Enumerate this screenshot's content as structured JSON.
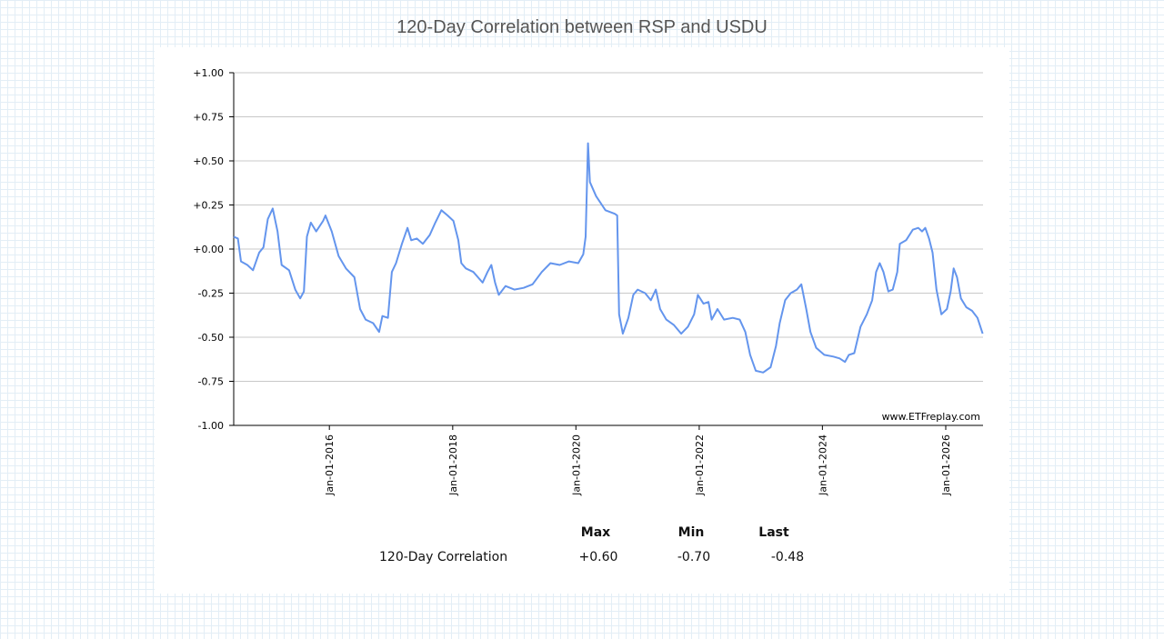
{
  "chart_data": {
    "type": "line",
    "title": "120-Day Correlation between RSP and USDU",
    "watermark": "www.ETFreplay.com",
    "xlim": [
      "2014-06-13",
      "2026-08-10"
    ],
    "xticks": [
      {
        "value": "2016-01-01",
        "label": "Jan-01-2016"
      },
      {
        "value": "2018-01-01",
        "label": "Jan-01-2018"
      },
      {
        "value": "2020-01-01",
        "label": "Jan-01-2020"
      },
      {
        "value": "2022-01-01",
        "label": "Jan-01-2022"
      },
      {
        "value": "2024-01-01",
        "label": "Jan-01-2024"
      },
      {
        "value": "2026-01-01",
        "label": "Jan-01-2026"
      }
    ],
    "ylim": [
      -1,
      1
    ],
    "yticks": [
      {
        "value": -1,
        "label": "-1.00"
      },
      {
        "value": -0.75,
        "label": "-0.75"
      },
      {
        "value": -0.5,
        "label": "-0.50"
      },
      {
        "value": -0.25,
        "label": "-0.25"
      },
      {
        "value": 0,
        "label": "+0.00"
      },
      {
        "value": 0.25,
        "label": "+0.25"
      },
      {
        "value": 0.5,
        "label": "+0.50"
      },
      {
        "value": 0.75,
        "label": "+0.75"
      },
      {
        "value": 1,
        "label": "+1.00"
      }
    ],
    "grid": true,
    "x": [
      "2014-06-13",
      "2014-07-08",
      "2014-07-26",
      "2014-09-02",
      "2014-10-05",
      "2014-11-11",
      "2014-12-06",
      "2015-01-01",
      "2015-01-30",
      "2015-02-28",
      "2015-03-24",
      "2015-05-07",
      "2015-06-13",
      "2015-07-12",
      "2015-08-03",
      "2015-08-21",
      "2015-09-13",
      "2015-10-15",
      "2015-11-25",
      "2015-12-09",
      "2016-01-15",
      "2016-02-25",
      "2016-04-08",
      "2016-05-28",
      "2016-07-01",
      "2016-08-03",
      "2016-09-16",
      "2016-10-22",
      "2016-11-10",
      "2016-12-13",
      "2017-01-05",
      "2017-01-30",
      "2017-03-06",
      "2017-04-08",
      "2017-04-30",
      "2017-06-02",
      "2017-07-08",
      "2017-08-18",
      "2017-09-20",
      "2017-10-26",
      "2017-12-02",
      "2018-01-05",
      "2018-02-03",
      "2018-02-21",
      "2018-03-20",
      "2018-05-03",
      "2018-06-27",
      "2018-07-26",
      "2018-08-18",
      "2018-09-09",
      "2018-10-01",
      "2018-11-10",
      "2019-01-01",
      "2019-02-25",
      "2019-04-19",
      "2019-06-13",
      "2019-08-03",
      "2019-09-27",
      "2019-11-21",
      "2020-01-15",
      "2020-02-14",
      "2020-02-28",
      "2020-03-13",
      "2020-03-24",
      "2020-04-30",
      "2020-06-24",
      "2020-08-18",
      "2020-09-02",
      "2020-09-13",
      "2020-10-05",
      "2020-11-07",
      "2020-12-06",
      "2021-01-01",
      "2021-02-14",
      "2021-03-20",
      "2021-04-19",
      "2021-05-14",
      "2021-06-20",
      "2021-08-03",
      "2021-09-16",
      "2021-10-26",
      "2021-12-02",
      "2021-12-24",
      "2022-01-26",
      "2022-02-25",
      "2022-03-16",
      "2022-04-19",
      "2022-05-28",
      "2022-07-19",
      "2022-08-29",
      "2022-10-01",
      "2022-10-30",
      "2022-12-02",
      "2023-01-15",
      "2023-02-28",
      "2023-04-01",
      "2023-04-23",
      "2023-05-25",
      "2023-06-27",
      "2023-08-03",
      "2023-08-29",
      "2023-09-27",
      "2023-10-22",
      "2023-11-25",
      "2024-01-12",
      "2024-03-06",
      "2024-04-12",
      "2024-05-14",
      "2024-06-06",
      "2024-07-08",
      "2024-08-14",
      "2024-09-20",
      "2024-10-22",
      "2024-11-14",
      "2024-12-06",
      "2024-12-28",
      "2025-01-26",
      "2025-02-21",
      "2025-03-20",
      "2025-04-04",
      "2025-05-11",
      "2025-06-20",
      "2025-07-22",
      "2025-08-14",
      "2025-09-02",
      "2025-09-24",
      "2025-10-15",
      "2025-11-07",
      "2025-12-06",
      "2026-01-08",
      "2026-01-30",
      "2026-02-17",
      "2026-03-09",
      "2026-04-01",
      "2026-05-03",
      "2026-06-06",
      "2026-07-08",
      "2026-08-08"
    ],
    "series": [
      {
        "name": "120-Day Correlation",
        "color": "#6495ed",
        "values": [
          0.07,
          0.06,
          -0.07,
          -0.09,
          -0.12,
          -0.02,
          0.01,
          0.17,
          0.23,
          0.1,
          -0.09,
          -0.12,
          -0.23,
          -0.28,
          -0.24,
          0.07,
          0.15,
          0.1,
          0.16,
          0.19,
          0.1,
          -0.04,
          -0.11,
          -0.16,
          -0.34,
          -0.4,
          -0.42,
          -0.47,
          -0.38,
          -0.39,
          -0.13,
          -0.08,
          0.03,
          0.12,
          0.05,
          0.06,
          0.03,
          0.08,
          0.15,
          0.22,
          0.19,
          0.16,
          0.05,
          -0.08,
          -0.11,
          -0.13,
          -0.19,
          -0.13,
          -0.09,
          -0.19,
          -0.26,
          -0.21,
          -0.23,
          -0.22,
          -0.2,
          -0.13,
          -0.08,
          -0.09,
          -0.07,
          -0.08,
          -0.03,
          0.07,
          0.6,
          0.38,
          0.3,
          0.22,
          0.2,
          0.19,
          -0.37,
          -0.48,
          -0.39,
          -0.26,
          -0.23,
          -0.25,
          -0.29,
          -0.23,
          -0.34,
          -0.4,
          -0.43,
          -0.48,
          -0.44,
          -0.37,
          -0.26,
          -0.31,
          -0.3,
          -0.4,
          -0.34,
          -0.4,
          -0.39,
          -0.4,
          -0.47,
          -0.6,
          -0.69,
          -0.7,
          -0.67,
          -0.55,
          -0.42,
          -0.29,
          -0.25,
          -0.23,
          -0.2,
          -0.34,
          -0.47,
          -0.56,
          -0.6,
          -0.61,
          -0.62,
          -0.64,
          -0.6,
          -0.59,
          -0.44,
          -0.37,
          -0.29,
          -0.13,
          -0.08,
          -0.13,
          -0.24,
          -0.23,
          -0.13,
          0.03,
          0.05,
          0.11,
          0.12,
          0.1,
          0.12,
          0.06,
          -0.02,
          -0.23,
          -0.37,
          -0.34,
          -0.24,
          -0.11,
          -0.16,
          -0.28,
          -0.33,
          -0.35,
          -0.39,
          -0.48
        ]
      }
    ]
  },
  "stats": {
    "headers": [
      "Max",
      "Min",
      "Last"
    ],
    "values": [
      "+0.60",
      "-0.70",
      "-0.48"
    ]
  }
}
